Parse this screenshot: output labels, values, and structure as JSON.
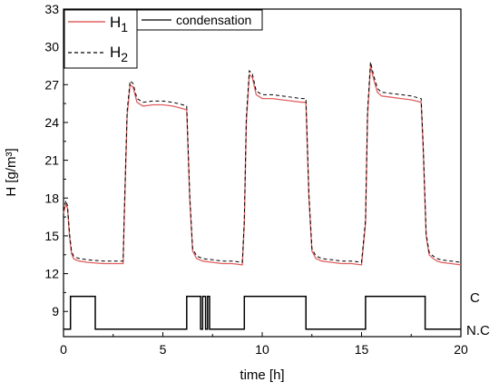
{
  "chart_data": {
    "type": "line",
    "xlabel": "time [h]",
    "ylabel": "H [g/m³]",
    "xlim": [
      0,
      20
    ],
    "ylim": [
      7,
      33
    ],
    "xticks": [
      0,
      5,
      10,
      15,
      20
    ],
    "yticks": [
      9,
      12,
      15,
      18,
      21,
      24,
      27,
      30,
      33
    ],
    "legend": {
      "placement": "top-left",
      "entries": [
        {
          "base": "H",
          "sub": "1",
          "color": "#e06060",
          "style": "solid"
        },
        {
          "base": "H",
          "sub": "2",
          "color": "#000000",
          "style": "dashed"
        },
        {
          "label": "condensation",
          "color": "#000000",
          "style": "solid"
        }
      ]
    },
    "series": [
      {
        "name": "H1",
        "color": "#e06060",
        "x": [
          0.0,
          0.12,
          0.2,
          0.3,
          0.4,
          0.5,
          0.6,
          0.8,
          1.2,
          2.0,
          2.6,
          3.0,
          3.05,
          3.2,
          3.35,
          3.5,
          3.7,
          4.0,
          4.5,
          5.0,
          5.5,
          6.0,
          6.2,
          6.35,
          6.5,
          6.7,
          7.0,
          7.5,
          8.0,
          8.5,
          9.0,
          9.1,
          9.2,
          9.35,
          9.5,
          9.7,
          10.0,
          10.5,
          11.0,
          11.5,
          12.0,
          12.2,
          12.35,
          12.5,
          12.7,
          13.0,
          13.5,
          14.0,
          14.5,
          15.0,
          15.2,
          15.3,
          15.45,
          15.6,
          15.8,
          16.0,
          16.5,
          17.0,
          17.5,
          18.0,
          18.1,
          18.25,
          18.4,
          18.6,
          18.8,
          19.0,
          19.5,
          20.0
        ],
        "values": [
          16.8,
          17.5,
          17.2,
          15.0,
          13.6,
          13.2,
          13.1,
          13.0,
          12.9,
          12.8,
          12.8,
          12.8,
          16.0,
          24.5,
          27.0,
          26.8,
          25.6,
          25.3,
          25.4,
          25.4,
          25.3,
          25.1,
          25.0,
          18.0,
          13.8,
          13.2,
          13.0,
          12.9,
          12.8,
          12.8,
          12.7,
          16.0,
          24.0,
          27.8,
          27.6,
          26.2,
          25.9,
          25.9,
          25.8,
          25.7,
          25.6,
          25.6,
          18.0,
          13.8,
          13.2,
          13.0,
          12.9,
          12.8,
          12.8,
          12.7,
          16.0,
          24.5,
          28.5,
          27.5,
          26.4,
          26.1,
          26.0,
          25.9,
          25.8,
          25.6,
          22.0,
          15.0,
          13.5,
          13.2,
          13.0,
          12.9,
          12.8,
          12.7
        ]
      },
      {
        "name": "H2",
        "color": "#000000",
        "x": [
          0.0,
          0.12,
          0.2,
          0.3,
          0.4,
          0.5,
          0.6,
          0.8,
          1.2,
          2.0,
          2.6,
          3.0,
          3.05,
          3.2,
          3.35,
          3.5,
          3.7,
          4.0,
          4.5,
          5.0,
          5.5,
          6.0,
          6.2,
          6.35,
          6.5,
          6.7,
          7.0,
          7.5,
          8.0,
          8.5,
          9.0,
          9.1,
          9.2,
          9.35,
          9.5,
          9.7,
          10.0,
          10.5,
          11.0,
          11.5,
          12.0,
          12.2,
          12.35,
          12.5,
          12.7,
          13.0,
          13.5,
          14.0,
          14.5,
          15.0,
          15.2,
          15.3,
          15.45,
          15.6,
          15.8,
          16.0,
          16.5,
          17.0,
          17.5,
          18.0,
          18.1,
          18.25,
          18.4,
          18.6,
          18.8,
          19.0,
          19.5,
          20.0
        ],
        "values": [
          17.0,
          17.8,
          17.4,
          15.2,
          13.8,
          13.4,
          13.3,
          13.2,
          13.1,
          13.0,
          13.0,
          13.0,
          16.3,
          24.9,
          27.3,
          27.1,
          25.9,
          25.6,
          25.7,
          25.7,
          25.6,
          25.4,
          25.3,
          18.3,
          14.0,
          13.4,
          13.2,
          13.1,
          13.0,
          13.0,
          12.9,
          16.3,
          24.4,
          28.1,
          27.9,
          26.5,
          26.2,
          26.2,
          26.1,
          26.0,
          25.9,
          25.9,
          18.3,
          14.0,
          13.4,
          13.2,
          13.1,
          13.0,
          13.0,
          12.9,
          16.3,
          24.9,
          28.8,
          27.8,
          26.7,
          26.4,
          26.3,
          26.2,
          26.1,
          25.9,
          22.3,
          15.2,
          13.7,
          13.4,
          13.2,
          13.1,
          13.0,
          12.9
        ]
      },
      {
        "name": "condensation",
        "color": "#000000",
        "high_value": 10.2,
        "low_value": 7.6,
        "x": [
          0.0,
          0.35,
          0.35,
          1.6,
          1.6,
          6.2,
          6.2,
          6.9,
          6.9,
          7.0,
          7.0,
          7.15,
          7.15,
          7.25,
          7.25,
          7.35,
          7.35,
          9.1,
          9.1,
          12.2,
          12.2,
          15.2,
          15.2,
          18.2,
          18.2,
          20.0
        ],
        "values": [
          7.6,
          7.6,
          10.2,
          10.2,
          7.6,
          7.6,
          10.2,
          10.2,
          7.6,
          7.6,
          10.2,
          10.2,
          7.6,
          7.6,
          10.2,
          10.2,
          7.6,
          7.6,
          10.2,
          10.2,
          7.6,
          7.6,
          10.2,
          10.2,
          7.6,
          7.6
        ]
      }
    ],
    "state_labels": {
      "condensation": "C",
      "no_condensation": "N.C"
    },
    "grid": false
  }
}
